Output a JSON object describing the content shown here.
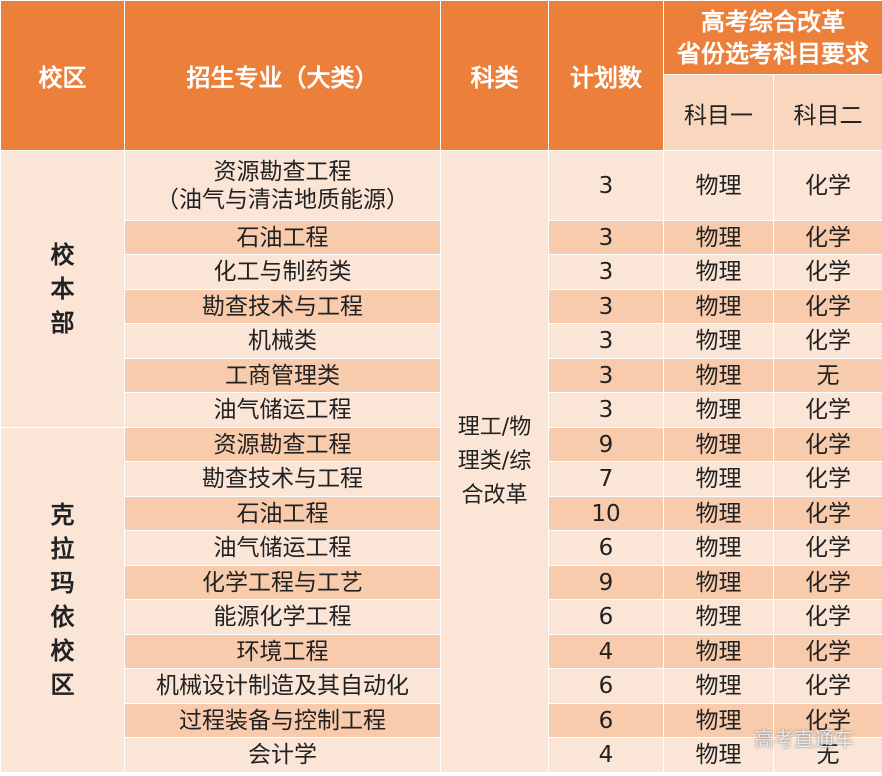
{
  "headers": {
    "campus": "校区",
    "major": "招生专业（大类）",
    "category": "科类",
    "plan": "计划数",
    "req_line1": "高考综合改革",
    "req_line2": "省份选考科目要求",
    "subject1": "科目一",
    "subject2": "科目二"
  },
  "campuses": {
    "main": "校\n本\n部",
    "karamay": "克\n拉\n玛\n依\n校\n区"
  },
  "category_value": "理工/物\n理类/综\n合改革",
  "rows": [
    {
      "major": "资源勘查工程\n（油气与清洁地质能源）",
      "plan": "3",
      "s1": "物理",
      "s2": "化学"
    },
    {
      "major": "石油工程",
      "plan": "3",
      "s1": "物理",
      "s2": "化学"
    },
    {
      "major": "化工与制药类",
      "plan": "3",
      "s1": "物理",
      "s2": "化学"
    },
    {
      "major": "勘查技术与工程",
      "plan": "3",
      "s1": "物理",
      "s2": "化学"
    },
    {
      "major": "机械类",
      "plan": "3",
      "s1": "物理",
      "s2": "化学"
    },
    {
      "major": "工商管理类",
      "plan": "3",
      "s1": "物理",
      "s2": "无"
    },
    {
      "major": "油气储运工程",
      "plan": "3",
      "s1": "物理",
      "s2": "化学"
    },
    {
      "major": "资源勘查工程",
      "plan": "9",
      "s1": "物理",
      "s2": "化学"
    },
    {
      "major": "勘查技术与工程",
      "plan": "7",
      "s1": "物理",
      "s2": "化学"
    },
    {
      "major": "石油工程",
      "plan": "10",
      "s1": "物理",
      "s2": "化学"
    },
    {
      "major": "油气储运工程",
      "plan": "6",
      "s1": "物理",
      "s2": "化学"
    },
    {
      "major": "化学工程与工艺",
      "plan": "9",
      "s1": "物理",
      "s2": "化学"
    },
    {
      "major": "能源化学工程",
      "plan": "6",
      "s1": "物理",
      "s2": "化学"
    },
    {
      "major": "环境工程",
      "plan": "4",
      "s1": "物理",
      "s2": "化学"
    },
    {
      "major": "机械设计制造及其自动化",
      "plan": "6",
      "s1": "物理",
      "s2": "化学"
    },
    {
      "major": "过程装备与控制工程",
      "plan": "6",
      "s1": "物理",
      "s2": "化学"
    },
    {
      "major": "会计学",
      "plan": "4",
      "s1": "物理",
      "s2": "无"
    }
  ],
  "watermark": "高考直通车"
}
